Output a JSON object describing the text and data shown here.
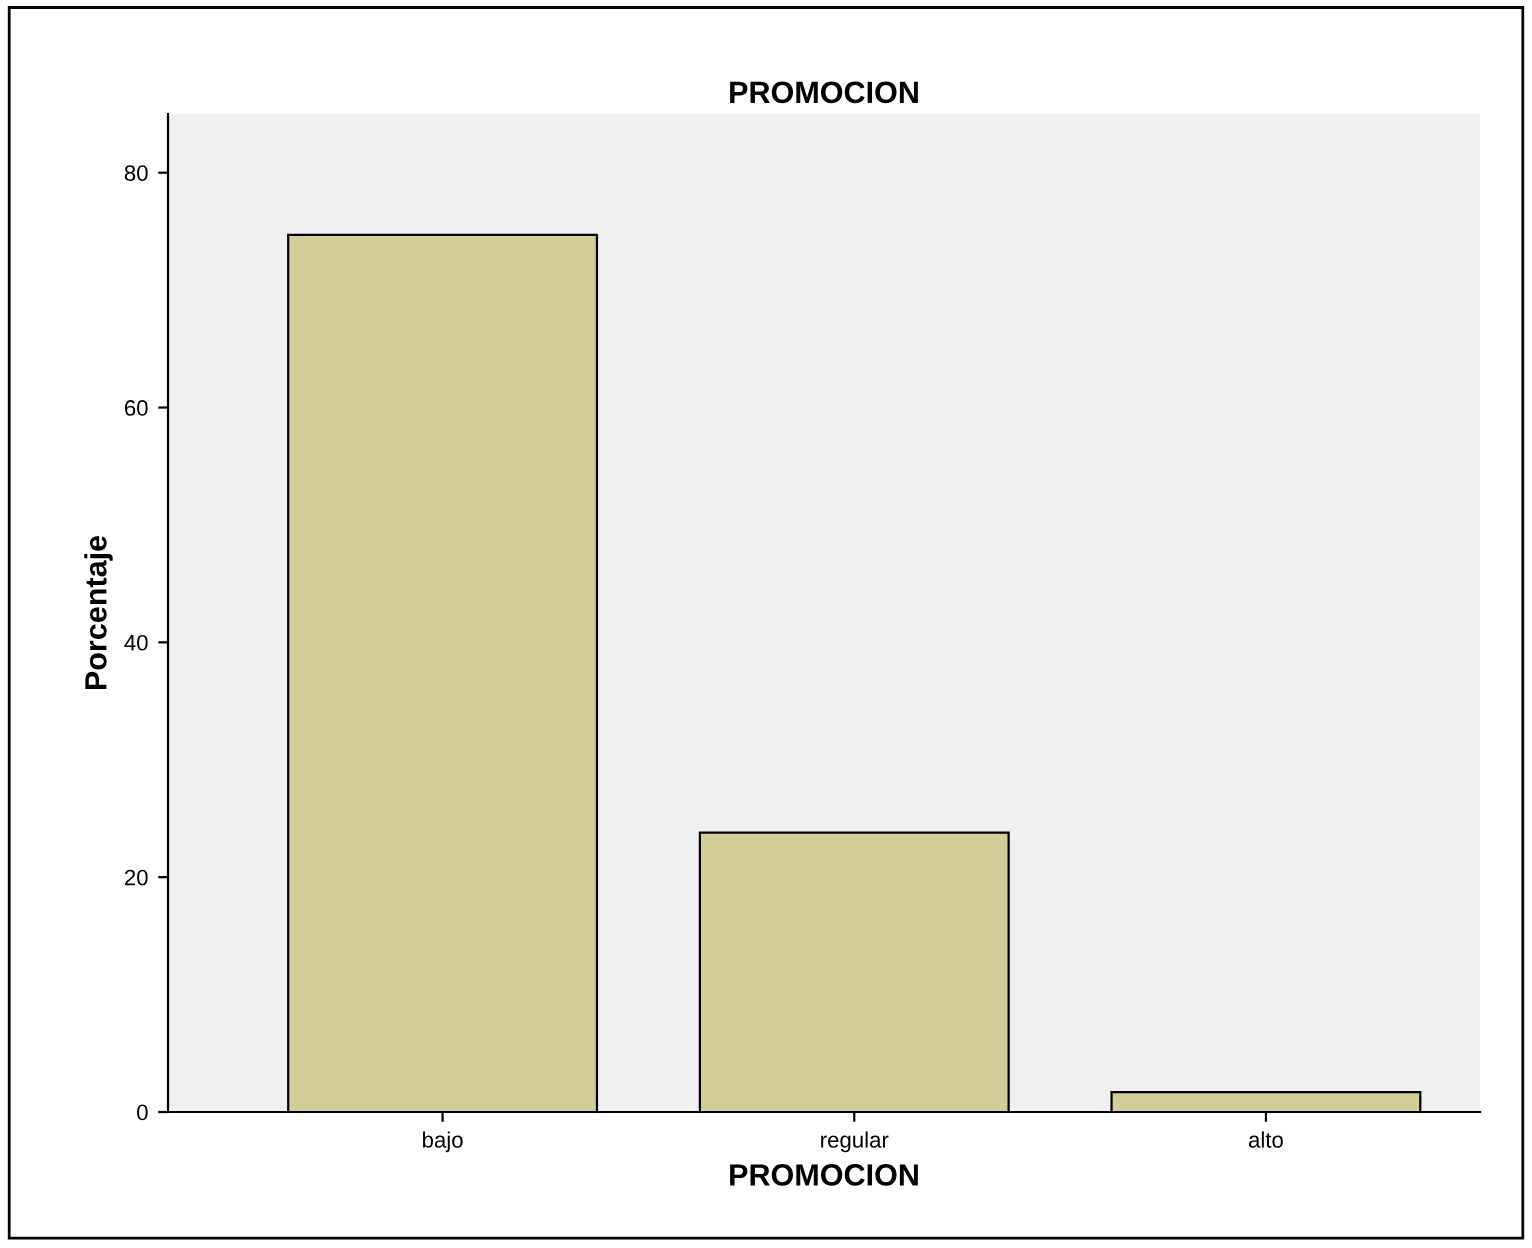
{
  "chart_data": {
    "type": "bar",
    "title": "PROMOCION",
    "xlabel": "PROMOCION",
    "ylabel": "Porcentaje",
    "categories": [
      "bajo",
      "regular",
      "alto"
    ],
    "values": [
      74.7,
      23.8,
      1.7
    ],
    "color": "#d3ce97",
    "ylim": [
      0,
      85
    ],
    "yticks": [
      0,
      20,
      40,
      60,
      80
    ],
    "grid": false
  }
}
